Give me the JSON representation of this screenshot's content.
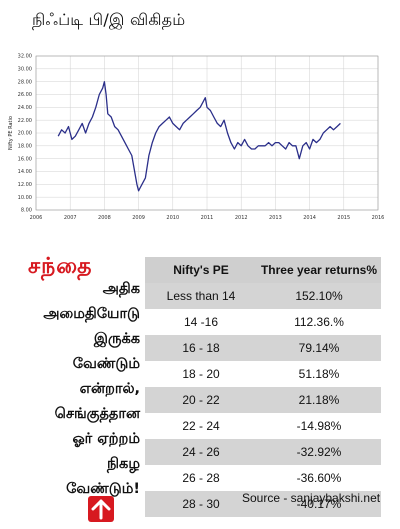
{
  "title": "நிஃப்டி பி/இ விகிதம்",
  "chart_data": {
    "type": "line",
    "ylabel": "Nifty PE Ratio",
    "xlim": [
      2006,
      2016
    ],
    "ylim": [
      8.0,
      32.0
    ],
    "x_ticks": [
      "2006",
      "2007",
      "2008",
      "2009",
      "2010",
      "2011",
      "2012",
      "2013",
      "2014",
      "2015",
      "2016"
    ],
    "y_ticks": [
      "8.00",
      "10.00",
      "12.00",
      "14.00",
      "16.00",
      "18.00",
      "20.00",
      "22.00",
      "24.00",
      "26.00",
      "28.00",
      "30.00",
      "32.00"
    ],
    "line_color": "#2b2f8a",
    "grid": true,
    "series": [
      {
        "x": [
          2006.65,
          2006.75,
          2006.85,
          2006.95,
          2007.05,
          2007.15,
          2007.25,
          2007.35,
          2007.45,
          2007.55,
          2007.65,
          2007.75,
          2007.85,
          2007.95,
          2008.0,
          2008.05,
          2008.1,
          2008.2,
          2008.3,
          2008.4,
          2008.5,
          2008.6,
          2008.7,
          2008.8,
          2008.85,
          2008.9,
          2008.95,
          2009.0,
          2009.05,
          2009.1,
          2009.2,
          2009.3,
          2009.4,
          2009.5,
          2009.6,
          2009.7,
          2009.8,
          2009.9,
          2010.0,
          2010.1,
          2010.2,
          2010.3,
          2010.4,
          2010.5,
          2010.6,
          2010.7,
          2010.8,
          2010.9,
          2010.95,
          2011.0,
          2011.1,
          2011.2,
          2011.3,
          2011.4,
          2011.5,
          2011.6,
          2011.7,
          2011.8,
          2011.9,
          2012.0,
          2012.1,
          2012.2,
          2012.3,
          2012.4,
          2012.5,
          2012.6,
          2012.7,
          2012.8,
          2012.9,
          2013.0,
          2013.1,
          2013.2,
          2013.3,
          2013.4,
          2013.5,
          2013.6,
          2013.7,
          2013.8,
          2013.9,
          2014.0,
          2014.1,
          2014.2,
          2014.3,
          2014.4,
          2014.5,
          2014.6,
          2014.7,
          2014.8,
          2014.9
        ],
        "y": [
          19.5,
          20.5,
          20.0,
          21.0,
          19.0,
          19.5,
          20.5,
          21.5,
          20.0,
          21.5,
          22.5,
          24.0,
          26.0,
          27.0,
          28.0,
          26.0,
          23.0,
          22.5,
          21.0,
          20.5,
          19.5,
          18.5,
          17.5,
          16.5,
          15.0,
          13.5,
          12.0,
          11.0,
          11.5,
          12.0,
          13.0,
          16.5,
          18.5,
          20.0,
          21.0,
          21.5,
          22.0,
          22.5,
          21.5,
          21.0,
          20.5,
          21.5,
          22.0,
          22.5,
          23.0,
          23.5,
          24.0,
          25.0,
          25.5,
          24.0,
          23.5,
          22.5,
          21.5,
          21.0,
          22.0,
          20.0,
          18.5,
          17.5,
          18.5,
          18.0,
          19.0,
          18.0,
          17.5,
          17.5,
          18.0,
          18.0,
          18.0,
          18.5,
          18.0,
          18.5,
          18.5,
          18.0,
          17.5,
          18.5,
          18.0,
          18.0,
          16.0,
          18.0,
          18.5,
          17.5,
          19.0,
          18.5,
          19.0,
          20.0,
          20.5,
          21.0,
          20.5,
          21.0,
          21.5
        ]
      }
    ]
  },
  "left_heading": "சந்தை",
  "left_paragraph": [
    "அதிக",
    "அமைதியோடு",
    "இருக்க",
    "வேண்டும்",
    "என்றால்,",
    "செங்குத்தான",
    "ஓர் ஏற்றம்",
    "நிகழ",
    "வேண்டும்!"
  ],
  "table": {
    "headers": [
      "Nifty's PE",
      "Three year returns%"
    ],
    "rows": [
      [
        "Less than 14",
        "152.10%"
      ],
      [
        "14 -16",
        "112.36.%"
      ],
      [
        "16 - 18",
        "79.14%"
      ],
      [
        "18 - 20",
        "51.18%"
      ],
      [
        "20 - 22",
        "21.18%"
      ],
      [
        "22 - 24",
        "-14.98%"
      ],
      [
        "24 - 26",
        "-32.92%"
      ],
      [
        "26 - 28",
        "-36.60%"
      ],
      [
        "28 - 30",
        "-40.17%"
      ]
    ]
  },
  "source": "Source - sanjaybakshi.net",
  "arrow_icon": "up-arrow-icon",
  "accent_color": "#d71920"
}
